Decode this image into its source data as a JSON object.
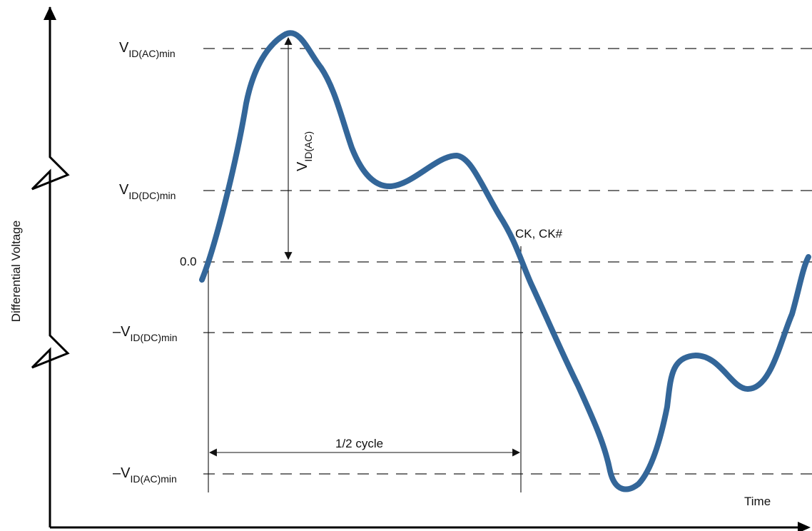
{
  "labels": {
    "y_axis": "Differential Voltage",
    "x_axis": "Time",
    "vac_max": {
      "base": "V",
      "sub": "ID(AC)min"
    },
    "vdc_max": {
      "base": "V",
      "sub": "ID(DC)min"
    },
    "zero": "0.0",
    "vdc_min": {
      "base": "–V",
      "sub": "ID(DC)min"
    },
    "vac_min": {
      "base": "–V",
      "sub": "ID(AC)min"
    },
    "vid_ac": {
      "base": "V",
      "sub": "ID(AC)"
    },
    "ck": "CK, CK#",
    "half_cycle": "1/2 cycle"
  },
  "colors": {
    "waveform": "#336699",
    "lines": "#222222"
  }
}
